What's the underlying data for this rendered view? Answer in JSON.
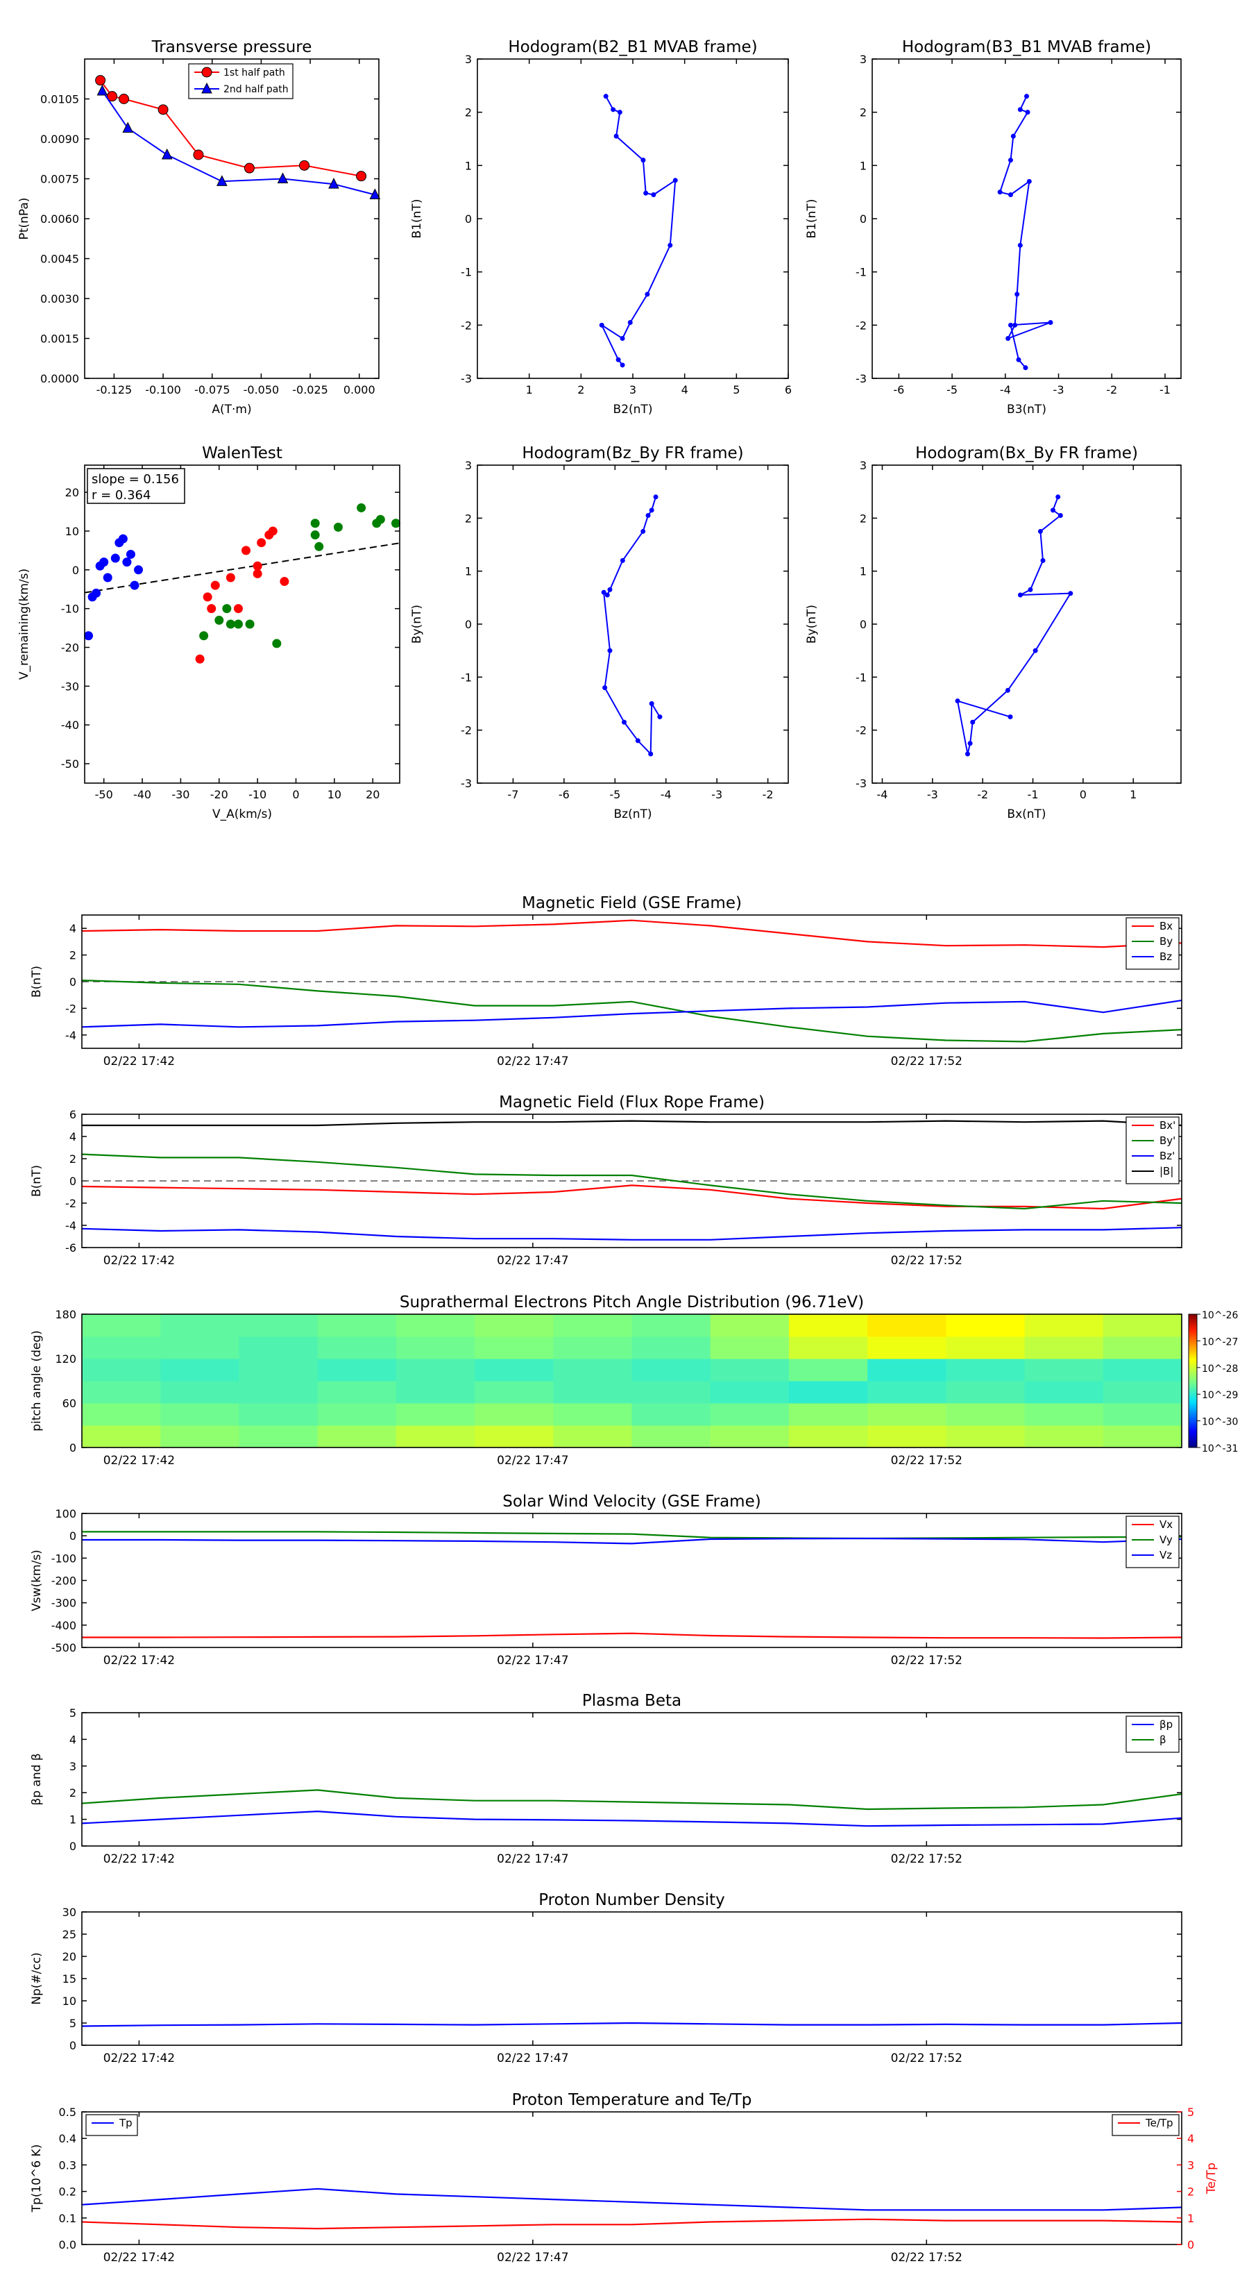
{
  "colors": {
    "red": "#ff0000",
    "green": "#008000",
    "blue": "#0000ff",
    "black": "#000000",
    "dash": "#555555"
  },
  "time_ticks": [
    "02/22 17:42",
    "02/22 17:47",
    "02/22 17:52"
  ],
  "colorbar": {
    "labels": [
      "10^-26",
      "10^-27",
      "10^-28",
      "10^-29",
      "10^-30",
      "10^-31"
    ]
  },
  "chart_data": [
    {
      "id": "tp",
      "type": "line",
      "title": "Transverse pressure",
      "xlabel": "A(T·m)",
      "ylabel": "Pt(nPa)",
      "xlim": [
        -0.14,
        0.01
      ],
      "ylim": [
        0,
        0.012
      ],
      "xticks": [
        "-0.125",
        "-0.100",
        "-0.075",
        "-0.050",
        "-0.025",
        "0.000"
      ],
      "yticks": [
        "0.0000",
        "0.0015",
        "0.0030",
        "0.0045",
        "0.0060",
        "0.0075",
        "0.0090",
        "0.0105"
      ],
      "legend_position": "top-right",
      "series": [
        {
          "name": "1st half path",
          "marker": "circle",
          "color": "#ff0000",
          "x": [
            -0.132,
            -0.126,
            -0.12,
            -0.1,
            -0.082,
            -0.056,
            -0.028,
            0.001
          ],
          "y": [
            0.0112,
            0.0106,
            0.0105,
            0.0101,
            0.0084,
            0.0079,
            0.008,
            0.0076
          ]
        },
        {
          "name": "2nd half path",
          "marker": "triangle",
          "color": "#0000ff",
          "x": [
            -0.131,
            -0.118,
            -0.098,
            -0.07,
            -0.039,
            -0.013,
            0.008
          ],
          "y": [
            0.0108,
            0.0094,
            0.0084,
            0.0074,
            0.0075,
            0.0073,
            0.0069
          ]
        }
      ]
    },
    {
      "id": "hodo1",
      "type": "line",
      "title": "Hodogram(B2_B1 MVAB frame)",
      "xlabel": "B2(nT)",
      "ylabel": "B1(nT)",
      "xlim": [
        0,
        6
      ],
      "ylim": [
        -3,
        3
      ],
      "xticks": [
        "1",
        "2",
        "3",
        "4",
        "5",
        "6"
      ],
      "yticks": [
        "-3",
        "-2",
        "-1",
        "0",
        "1",
        "2",
        "3"
      ],
      "x": [
        2.48,
        2.62,
        2.75,
        2.68,
        3.2,
        3.25,
        3.4,
        3.82,
        3.72,
        3.28,
        2.95,
        2.8,
        2.4,
        2.72,
        2.8
      ],
      "y": [
        2.3,
        2.05,
        2.0,
        1.55,
        1.1,
        0.48,
        0.45,
        0.72,
        -0.5,
        -1.42,
        -1.95,
        -2.25,
        -2.0,
        -2.65,
        -2.75
      ]
    },
    {
      "id": "hodo2",
      "type": "line",
      "title": "Hodogram(B3_B1 MVAB frame)",
      "xlabel": "B3(nT)",
      "ylabel": "B1(nT)",
      "xlim": [
        -6.5,
        -0.7
      ],
      "ylim": [
        -3,
        3
      ],
      "xticks": [
        "-6",
        "-5",
        "-4",
        "-3",
        "-2",
        "-1"
      ],
      "yticks": [
        "-3",
        "-2",
        "-1",
        "0",
        "1",
        "2",
        "3"
      ],
      "x": [
        -3.6,
        -3.72,
        -3.58,
        -3.85,
        -3.9,
        -4.1,
        -3.9,
        -3.55,
        -3.72,
        -3.78,
        -3.82,
        -3.95,
        -3.15,
        -3.9,
        -3.75,
        -3.62
      ],
      "y": [
        2.3,
        2.05,
        2.0,
        1.55,
        1.1,
        0.5,
        0.45,
        0.7,
        -0.5,
        -1.42,
        -2.0,
        -2.25,
        -1.95,
        -2.0,
        -2.65,
        -2.8
      ]
    },
    {
      "id": "walen",
      "type": "scatter",
      "title": "WalenTest",
      "xlabel": "V_A(km/s)",
      "ylabel": "V_remaining(km/s)",
      "xlim": [
        -55,
        27
      ],
      "ylim": [
        -55,
        27
      ],
      "xticks": [
        "-50",
        "-40",
        "-30",
        "-20",
        "-10",
        "0",
        "10",
        "20"
      ],
      "yticks": [
        "-50",
        "-40",
        "-30",
        "-20",
        "-10",
        "0",
        "10",
        "20"
      ],
      "annotation": [
        "slope = 0.156",
        "r = 0.364"
      ],
      "fit": {
        "slope": 0.156,
        "intercept": 2.7
      },
      "series": [
        {
          "color": "#0000ff",
          "x": [
            -54,
            -53,
            -52,
            -51,
            -50,
            -49,
            -47,
            -46,
            -45,
            -44,
            -43,
            -42,
            -41
          ],
          "y": [
            -17,
            -7,
            -6,
            1,
            2,
            -2,
            3,
            7,
            8,
            2,
            4,
            -4,
            0
          ]
        },
        {
          "color": "#ff0000",
          "x": [
            -25,
            -23,
            -22,
            -21,
            -17,
            -15,
            -13,
            -10,
            -10,
            -9,
            -7,
            -6,
            -3
          ],
          "y": [
            -23,
            -7,
            -10,
            -4,
            -2,
            -10,
            5,
            1,
            -1,
            7,
            9,
            10,
            -3
          ]
        },
        {
          "color": "#008000",
          "x": [
            -24,
            -20,
            -18,
            -17,
            -15,
            -12,
            -5,
            5,
            5,
            6,
            11,
            17,
            21,
            22,
            26
          ],
          "y": [
            -17,
            -13,
            -10,
            -14,
            -14,
            -14,
            -19,
            9,
            12,
            6,
            11,
            16,
            12,
            13,
            12
          ]
        }
      ]
    },
    {
      "id": "hodo3",
      "type": "line",
      "title": "Hodogram(Bz_By FR frame)",
      "xlabel": "Bz(nT)",
      "ylabel": "By(nT)",
      "xlim": [
        -7.7,
        -1.6
      ],
      "ylim": [
        -3,
        3
      ],
      "xticks": [
        "-7",
        "-6",
        "-5",
        "-4",
        "-3",
        "-2"
      ],
      "yticks": [
        "-3",
        "-2",
        "-1",
        "0",
        "1",
        "2",
        "3"
      ],
      "x": [
        -4.2,
        -4.28,
        -4.35,
        -4.45,
        -4.85,
        -5.1,
        -5.15,
        -5.22,
        -5.1,
        -5.2,
        -4.82,
        -4.55,
        -4.3,
        -4.28,
        -4.12
      ],
      "y": [
        2.4,
        2.15,
        2.05,
        1.75,
        1.2,
        0.65,
        0.55,
        0.6,
        -0.5,
        -1.2,
        -1.85,
        -2.2,
        -2.45,
        -1.5,
        -1.75
      ]
    },
    {
      "id": "hodo4",
      "type": "line",
      "title": "Hodogram(Bx_By FR frame)",
      "xlabel": "Bx(nT)",
      "ylabel": "By(nT)",
      "xlim": [
        -4.2,
        1.95
      ],
      "ylim": [
        -3,
        3
      ],
      "xticks": [
        "-4",
        "-3",
        "-2",
        "-1",
        "0",
        "1"
      ],
      "yticks": [
        "-3",
        "-2",
        "-1",
        "0",
        "1",
        "2",
        "3"
      ],
      "x": [
        -0.5,
        -0.6,
        -0.45,
        -0.85,
        -0.8,
        -1.05,
        -1.25,
        -0.25,
        -0.95,
        -1.5,
        -2.2,
        -2.25,
        -2.3,
        -2.5,
        -1.45
      ],
      "y": [
        2.4,
        2.15,
        2.05,
        1.75,
        1.2,
        0.65,
        0.55,
        0.58,
        -0.5,
        -1.25,
        -1.85,
        -2.25,
        -2.45,
        -1.45,
        -1.75
      ]
    },
    {
      "id": "bgse",
      "type": "line",
      "title": "Magnetic Field (GSE Frame)",
      "ylabel": "B(nT)",
      "ylim": [
        -5,
        5
      ],
      "yticks": [
        "-4",
        "-2",
        "0",
        "2",
        "4"
      ],
      "zero_line": true,
      "x": [
        0,
        1,
        2,
        3,
        4,
        5,
        6,
        7,
        8,
        9,
        10,
        11,
        12,
        13,
        14
      ],
      "legend_position": "top-right",
      "series": [
        {
          "name": "Bx",
          "color": "#ff0000",
          "values": [
            3.8,
            3.9,
            3.8,
            3.8,
            4.2,
            4.15,
            4.3,
            4.6,
            4.2,
            3.6,
            3.0,
            2.7,
            2.75,
            2.6,
            2.9
          ]
        },
        {
          "name": "By",
          "color": "#008000",
          "values": [
            0.1,
            -0.1,
            -0.2,
            -0.7,
            -1.1,
            -1.8,
            -1.8,
            -1.5,
            -2.6,
            -3.4,
            -4.1,
            -4.4,
            -4.5,
            -3.9,
            -3.6
          ]
        },
        {
          "name": "Bz",
          "color": "#0000ff",
          "values": [
            -3.4,
            -3.2,
            -3.4,
            -3.3,
            -3.0,
            -2.9,
            -2.7,
            -2.4,
            -2.2,
            -2.0,
            -1.9,
            -1.6,
            -1.5,
            -2.3,
            -1.4
          ]
        }
      ]
    },
    {
      "id": "bfr",
      "type": "line",
      "title": "Magnetic Field (Flux Rope Frame)",
      "ylabel": "B(nT)",
      "ylim": [
        -6,
        6
      ],
      "yticks": [
        "-6",
        "-4",
        "-2",
        "0",
        "2",
        "4",
        "6"
      ],
      "zero_line": true,
      "x": [
        0,
        1,
        2,
        3,
        4,
        5,
        6,
        7,
        8,
        9,
        10,
        11,
        12,
        13,
        14
      ],
      "legend_position": "top-right",
      "series": [
        {
          "name": "Bx'",
          "color": "#ff0000",
          "values": [
            -0.5,
            -0.6,
            -0.7,
            -0.8,
            -1.0,
            -1.2,
            -1.0,
            -0.4,
            -0.8,
            -1.6,
            -2.0,
            -2.3,
            -2.3,
            -2.5,
            -1.6
          ]
        },
        {
          "name": "By'",
          "color": "#008000",
          "values": [
            2.4,
            2.1,
            2.1,
            1.7,
            1.2,
            0.6,
            0.5,
            0.5,
            -0.4,
            -1.2,
            -1.8,
            -2.2,
            -2.5,
            -1.8,
            -2.0
          ]
        },
        {
          "name": "Bz'",
          "color": "#0000ff",
          "values": [
            -4.3,
            -4.5,
            -4.4,
            -4.6,
            -5.0,
            -5.2,
            -5.2,
            -5.3,
            -5.3,
            -5.0,
            -4.7,
            -4.5,
            -4.4,
            -4.4,
            -4.2
          ]
        },
        {
          "name": "|B|",
          "color": "#000000",
          "values": [
            5.0,
            5.0,
            5.0,
            5.0,
            5.2,
            5.3,
            5.3,
            5.4,
            5.3,
            5.3,
            5.3,
            5.4,
            5.3,
            5.4,
            5.0
          ]
        }
      ]
    },
    {
      "id": "pad",
      "type": "heatmap",
      "title": "Suprathermal Electrons Pitch Angle Distribution (96.71eV)",
      "ylabel": "pitch angle (deg)",
      "ylim": [
        0,
        180
      ],
      "yticks": [
        "0",
        "60",
        "120",
        "180"
      ],
      "colorbar_range_log10": [
        -31,
        -26
      ],
      "rows_pitch_center": [
        15,
        45,
        75,
        105,
        135,
        165
      ],
      "values_log10": [
        [
          -28.2,
          -28.4,
          -28.5,
          -28.3,
          -28.1,
          -28.0,
          -28.2,
          -28.4,
          -28.3,
          -28.1,
          -28.0,
          -28.1,
          -28.2,
          -28.3
        ],
        [
          -28.5,
          -28.6,
          -28.7,
          -28.6,
          -28.5,
          -28.4,
          -28.5,
          -28.7,
          -28.6,
          -28.4,
          -28.3,
          -28.4,
          -28.5,
          -28.6
        ],
        [
          -28.7,
          -28.8,
          -28.8,
          -28.7,
          -28.8,
          -28.7,
          -28.8,
          -28.8,
          -28.9,
          -29.0,
          -28.9,
          -28.8,
          -28.9,
          -28.8
        ],
        [
          -28.8,
          -28.9,
          -28.8,
          -28.9,
          -28.8,
          -28.9,
          -28.8,
          -28.9,
          -28.8,
          -28.6,
          -29.0,
          -28.9,
          -28.8,
          -28.9
        ],
        [
          -28.7,
          -28.7,
          -28.8,
          -28.7,
          -28.6,
          -28.5,
          -28.6,
          -28.7,
          -28.4,
          -28.0,
          -27.8,
          -27.9,
          -28.1,
          -28.3
        ],
        [
          -28.6,
          -28.7,
          -28.7,
          -28.6,
          -28.5,
          -28.4,
          -28.5,
          -28.6,
          -28.3,
          -27.8,
          -27.6,
          -27.7,
          -27.9,
          -28.1
        ]
      ]
    },
    {
      "id": "vsw",
      "type": "line",
      "title": "Solar Wind Velocity (GSE Frame)",
      "ylabel": "Vsw(km/s)",
      "ylim": [
        -500,
        100
      ],
      "yticks": [
        "-500",
        "-400",
        "-300",
        "-200",
        "-100",
        "0",
        "100"
      ],
      "x": [
        0,
        1,
        2,
        3,
        4,
        5,
        6,
        7,
        8,
        9,
        10,
        11,
        12,
        13,
        14
      ],
      "legend_position": "top-right",
      "series": [
        {
          "name": "Vx",
          "color": "#ff0000",
          "values": [
            -455,
            -455,
            -454,
            -453,
            -452,
            -448,
            -442,
            -437,
            -447,
            -452,
            -455,
            -457,
            -457,
            -458,
            -455
          ]
        },
        {
          "name": "Vy",
          "color": "#008000",
          "values": [
            18,
            18,
            18,
            18,
            16,
            13,
            10,
            8,
            -8,
            -10,
            -12,
            -10,
            -8,
            -6,
            -5
          ]
        },
        {
          "name": "Vz",
          "color": "#0000ff",
          "values": [
            -18,
            -18,
            -20,
            -20,
            -22,
            -24,
            -28,
            -35,
            -15,
            -13,
            -12,
            -14,
            -16,
            -28,
            -15
          ]
        }
      ]
    },
    {
      "id": "beta",
      "type": "line",
      "title": "Plasma Beta",
      "ylabel": "βp and β",
      "ylim": [
        0,
        5
      ],
      "yticks": [
        "0",
        "1",
        "2",
        "3",
        "4",
        "5"
      ],
      "x": [
        0,
        1,
        2,
        3,
        4,
        5,
        6,
        7,
        8,
        9,
        10,
        11,
        12,
        13,
        14
      ],
      "legend_position": "top-right",
      "series": [
        {
          "name": "βp",
          "color": "#0000ff",
          "values": [
            0.85,
            1.0,
            1.15,
            1.3,
            1.1,
            1.0,
            0.98,
            0.95,
            0.9,
            0.85,
            0.75,
            0.78,
            0.8,
            0.82,
            1.05
          ]
        },
        {
          "name": "β",
          "color": "#008000",
          "values": [
            1.6,
            1.8,
            1.95,
            2.1,
            1.8,
            1.7,
            1.7,
            1.65,
            1.6,
            1.55,
            1.38,
            1.42,
            1.45,
            1.55,
            1.95
          ]
        }
      ]
    },
    {
      "id": "np",
      "type": "line",
      "title": "Proton Number Density",
      "ylabel": "Np(#/cc)",
      "ylim": [
        0,
        30
      ],
      "yticks": [
        "0",
        "5",
        "10",
        "15",
        "20",
        "25",
        "30"
      ],
      "x": [
        0,
        1,
        2,
        3,
        4,
        5,
        6,
        7,
        8,
        9,
        10,
        11,
        12,
        13,
        14
      ],
      "series": [
        {
          "color": "#0000ff",
          "values": [
            4.3,
            4.5,
            4.6,
            4.8,
            4.7,
            4.6,
            4.8,
            5.0,
            4.8,
            4.6,
            4.6,
            4.7,
            4.6,
            4.6,
            5.0
          ]
        }
      ]
    },
    {
      "id": "temp",
      "type": "line",
      "title": "Proton Temperature and Te/Tp",
      "ylabel": "Tp(10^6 K)",
      "ylim": [
        0,
        0.5
      ],
      "yticks": [
        "0.0",
        "0.1",
        "0.2",
        "0.3",
        "0.4",
        "0.5"
      ],
      "y2label": "Te/Tp",
      "y2lim": [
        0,
        5
      ],
      "y2ticks": [
        "0",
        "1",
        "2",
        "3",
        "4",
        "5"
      ],
      "x": [
        0,
        1,
        2,
        3,
        4,
        5,
        6,
        7,
        8,
        9,
        10,
        11,
        12,
        13,
        14
      ],
      "series": [
        {
          "name": "Tp",
          "color": "#0000ff",
          "axis": "left",
          "legend_position": "top-left",
          "values": [
            0.15,
            0.17,
            0.19,
            0.21,
            0.19,
            0.18,
            0.17,
            0.16,
            0.15,
            0.14,
            0.13,
            0.13,
            0.13,
            0.13,
            0.14
          ]
        },
        {
          "name": "Te/Tp",
          "color": "#ff0000",
          "axis": "right",
          "legend_position": "top-right",
          "values": [
            0.85,
            0.75,
            0.65,
            0.6,
            0.65,
            0.7,
            0.75,
            0.75,
            0.85,
            0.9,
            0.95,
            0.9,
            0.9,
            0.9,
            0.85
          ]
        }
      ]
    }
  ]
}
